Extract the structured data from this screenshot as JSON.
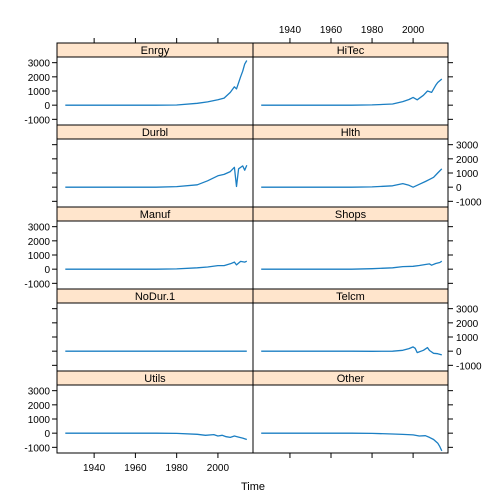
{
  "chart_data": {
    "type": "line",
    "layout": "trellis 2 columns x 5 rows",
    "xlabel": "Time",
    "ylabel": "",
    "title": "",
    "xlim": [
      1922,
      2017
    ],
    "ylim": [
      -1400,
      3400
    ],
    "x_ticks": [
      1940,
      1960,
      1980,
      2000
    ],
    "y_ticks": [
      -1000,
      0,
      1000,
      2000,
      3000
    ],
    "x_tick_labels": [
      "1940",
      "1960",
      "1980",
      "2000"
    ],
    "y_tick_labels": [
      "-1000",
      "0",
      "1000",
      "2000",
      "3000"
    ],
    "line_color": "#1b7fc3",
    "strip_color": "#ffe5cc",
    "grid": false,
    "panels": [
      {
        "name": "Enrgy",
        "points": [
          [
            1926,
            0
          ],
          [
            1970,
            0
          ],
          [
            1980,
            10
          ],
          [
            1990,
            130
          ],
          [
            1995,
            230
          ],
          [
            2000,
            380
          ],
          [
            2003,
            500
          ],
          [
            2006,
            900
          ],
          [
            2008,
            1300
          ],
          [
            2009,
            1150
          ],
          [
            2011,
            2000
          ],
          [
            2012,
            2400
          ],
          [
            2013,
            2900
          ],
          [
            2014,
            3150
          ]
        ]
      },
      {
        "name": "HiTec",
        "points": [
          [
            1926,
            0
          ],
          [
            1970,
            0
          ],
          [
            1980,
            20
          ],
          [
            1990,
            80
          ],
          [
            1995,
            250
          ],
          [
            1998,
            400
          ],
          [
            2000,
            550
          ],
          [
            2002,
            380
          ],
          [
            2005,
            700
          ],
          [
            2007,
            1000
          ],
          [
            2009,
            900
          ],
          [
            2011,
            1400
          ],
          [
            2012,
            1600
          ],
          [
            2014,
            1850
          ]
        ]
      },
      {
        "name": "Durbl",
        "points": [
          [
            1926,
            0
          ],
          [
            1970,
            0
          ],
          [
            1980,
            40
          ],
          [
            1990,
            170
          ],
          [
            1995,
            450
          ],
          [
            2000,
            800
          ],
          [
            2003,
            900
          ],
          [
            2006,
            1100
          ],
          [
            2008,
            1400
          ],
          [
            2009,
            50
          ],
          [
            2010,
            1300
          ],
          [
            2012,
            1500
          ],
          [
            2013,
            1200
          ],
          [
            2014,
            1550
          ]
        ]
      },
      {
        "name": "Hlth",
        "points": [
          [
            1926,
            0
          ],
          [
            1970,
            0
          ],
          [
            1980,
            20
          ],
          [
            1990,
            100
          ],
          [
            1995,
            250
          ],
          [
            1998,
            130
          ],
          [
            2000,
            0
          ],
          [
            2003,
            200
          ],
          [
            2006,
            400
          ],
          [
            2008,
            550
          ],
          [
            2010,
            700
          ],
          [
            2012,
            1000
          ],
          [
            2014,
            1300
          ]
        ]
      },
      {
        "name": "Manuf",
        "points": [
          [
            1926,
            0
          ],
          [
            1970,
            0
          ],
          [
            1980,
            20
          ],
          [
            1990,
            100
          ],
          [
            1995,
            150
          ],
          [
            2000,
            250
          ],
          [
            2003,
            250
          ],
          [
            2006,
            380
          ],
          [
            2008,
            500
          ],
          [
            2009,
            300
          ],
          [
            2011,
            550
          ],
          [
            2013,
            500
          ],
          [
            2014,
            560
          ]
        ]
      },
      {
        "name": "Shops",
        "points": [
          [
            1926,
            0
          ],
          [
            1970,
            0
          ],
          [
            1980,
            30
          ],
          [
            1990,
            100
          ],
          [
            1995,
            180
          ],
          [
            2000,
            200
          ],
          [
            2003,
            260
          ],
          [
            2006,
            330
          ],
          [
            2008,
            370
          ],
          [
            2009,
            280
          ],
          [
            2011,
            400
          ],
          [
            2013,
            470
          ],
          [
            2014,
            560
          ]
        ]
      },
      {
        "name": "NoDur.1",
        "points": [
          [
            1926,
            0
          ],
          [
            2014,
            0
          ]
        ]
      },
      {
        "name": "Telcm",
        "points": [
          [
            1926,
            0
          ],
          [
            1970,
            0
          ],
          [
            1980,
            -10
          ],
          [
            1990,
            0
          ],
          [
            1995,
            60
          ],
          [
            1998,
            180
          ],
          [
            2000,
            300
          ],
          [
            2001,
            200
          ],
          [
            2002,
            -100
          ],
          [
            2005,
            60
          ],
          [
            2007,
            250
          ],
          [
            2008,
            50
          ],
          [
            2010,
            -150
          ],
          [
            2012,
            -180
          ],
          [
            2014,
            -260
          ]
        ]
      },
      {
        "name": "Utils",
        "points": [
          [
            1926,
            0
          ],
          [
            1970,
            0
          ],
          [
            1980,
            -20
          ],
          [
            1990,
            -80
          ],
          [
            1994,
            -150
          ],
          [
            1998,
            -100
          ],
          [
            2000,
            -200
          ],
          [
            2002,
            -150
          ],
          [
            2004,
            -250
          ],
          [
            2006,
            -300
          ],
          [
            2008,
            -200
          ],
          [
            2010,
            -280
          ],
          [
            2012,
            -350
          ],
          [
            2014,
            -450
          ]
        ]
      },
      {
        "name": "Other",
        "points": [
          [
            1926,
            0
          ],
          [
            1970,
            0
          ],
          [
            1980,
            -20
          ],
          [
            1990,
            -60
          ],
          [
            1995,
            -90
          ],
          [
            2000,
            -120
          ],
          [
            2003,
            -200
          ],
          [
            2006,
            -180
          ],
          [
            2008,
            -300
          ],
          [
            2010,
            -450
          ],
          [
            2012,
            -700
          ],
          [
            2013,
            -950
          ],
          [
            2014,
            -1250
          ]
        ]
      }
    ]
  }
}
